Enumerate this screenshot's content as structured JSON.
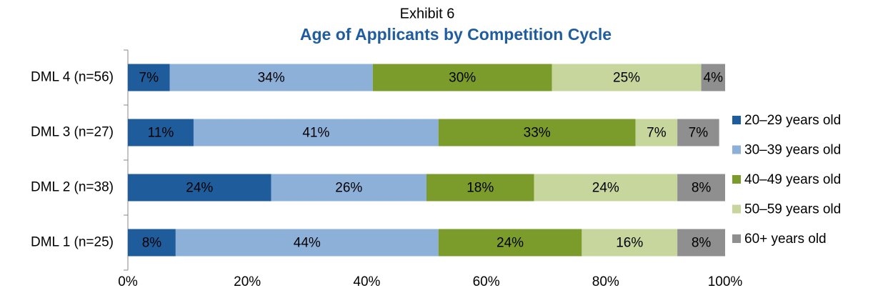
{
  "chart_data": {
    "type": "stacked_barh",
    "title": "Exhibit 6",
    "subtitle": "Age of Applicants by Competition Cycle",
    "categories": [
      "DML 4 (n=56)",
      "DML 3 (n=27)",
      "DML 2 (n=38)",
      "DML 1 (n=25)"
    ],
    "series": [
      {
        "name": "20–29 years old",
        "color": "#1f5c9c",
        "values": [
          7,
          11,
          24,
          8
        ],
        "value_labels": [
          "7%",
          "11%",
          "24%",
          "8%"
        ]
      },
      {
        "name": "30–39 years old",
        "color": "#8db0d9",
        "values": [
          34,
          41,
          26,
          44
        ],
        "value_labels": [
          "34%",
          "41%",
          "26%",
          "44%"
        ]
      },
      {
        "name": "40–49 years old",
        "color": "#7b9b2b",
        "values": [
          30,
          33,
          18,
          24
        ],
        "value_labels": [
          "30%",
          "33%",
          "18%",
          "24%"
        ]
      },
      {
        "name": "50–59 years old",
        "color": "#c7d69d",
        "values": [
          25,
          7,
          24,
          16
        ],
        "value_labels": [
          "25%",
          "7%",
          "24%",
          "16%"
        ]
      },
      {
        "name": "60+ years old",
        "color": "#8f8f8f",
        "values": [
          4,
          7,
          8,
          8
        ],
        "value_labels": [
          "4%",
          "7%",
          "8%",
          "8%"
        ]
      }
    ],
    "xlim": [
      0,
      100
    ],
    "xticks": [
      {
        "value": 0,
        "label": "0%"
      },
      {
        "value": 20,
        "label": "20%"
      },
      {
        "value": 40,
        "label": "40%"
      },
      {
        "value": 60,
        "label": "60%"
      },
      {
        "value": 80,
        "label": "80%"
      },
      {
        "value": 100,
        "label": "100%"
      }
    ],
    "legend": "right"
  }
}
